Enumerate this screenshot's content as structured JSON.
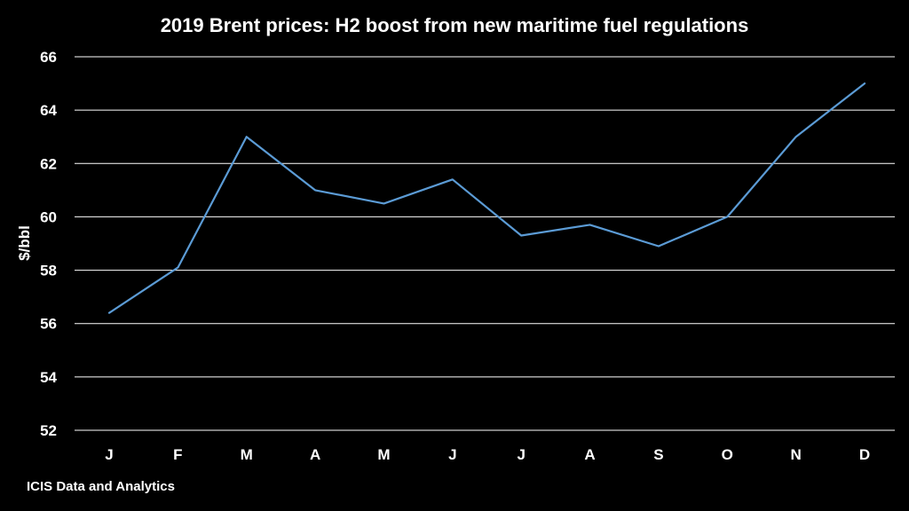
{
  "chart_data": {
    "type": "line",
    "title": "2019 Brent prices: H2 boost from new maritime fuel regulations",
    "xlabel": "",
    "ylabel": "$/bbl",
    "categories": [
      "J",
      "F",
      "M",
      "A",
      "M",
      "J",
      "J",
      "A",
      "S",
      "O",
      "N",
      "D"
    ],
    "series": [
      {
        "values": [
          56.4,
          58.1,
          63.0,
          61.0,
          60.5,
          61.4,
          59.3,
          59.7,
          58.9,
          60.0,
          63.0,
          65.0
        ],
        "color": "#5b9bd5"
      }
    ],
    "ylim": [
      52,
      66
    ],
    "yticks": [
      "52",
      "54",
      "56",
      "58",
      "60",
      "62",
      "64",
      "66"
    ],
    "grid": true,
    "legend": "none"
  },
  "footer": {
    "source": "ICIS Data and Analytics"
  },
  "colors": {
    "background": "#000000",
    "text": "#ffffff",
    "gridline": "#ffffff",
    "line": "#5b9bd5"
  }
}
